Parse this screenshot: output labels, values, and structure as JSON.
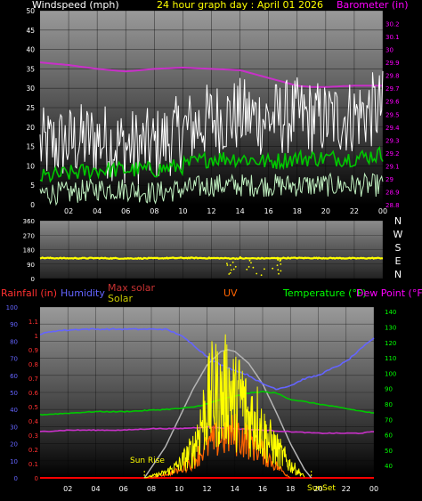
{
  "chart_data": [
    {
      "type": "line",
      "title": "24 hour graph day : April 01 2026",
      "ylabel": "Windspeed (mph)",
      "y2label": "Barometer (in)",
      "xlim": [
        0,
        24
      ],
      "ylim": [
        0,
        50
      ],
      "y2lim": [
        28.8,
        30.3
      ],
      "x_ticks": [
        "02",
        "04",
        "06",
        "08",
        "10",
        "12",
        "14",
        "16",
        "18",
        "20",
        "22",
        "00"
      ],
      "y_ticks": [
        "0",
        "5",
        "10",
        "15",
        "20",
        "25",
        "30",
        "35",
        "40",
        "45",
        "50"
      ],
      "y2_ticks": [
        "28.8",
        "28.9",
        "29",
        "29.1",
        "29.2",
        "29.3",
        "29.4",
        "29.5",
        "29.6",
        "29.7",
        "29.8",
        "29.9",
        "30",
        "30.1",
        "30.2"
      ],
      "grid": true,
      "series": [
        {
          "name": "Barometer (in)",
          "color": "#c830c8",
          "x": [
            0,
            2,
            4,
            6,
            8,
            10,
            12,
            14,
            16,
            18,
            19,
            20,
            22,
            24
          ],
          "y": [
            29.9,
            29.88,
            29.85,
            29.83,
            29.85,
            29.86,
            29.85,
            29.84,
            29.78,
            29.72,
            29.71,
            29.71,
            29.72,
            29.72
          ]
        },
        {
          "name": "gust",
          "color": "#ffffff",
          "x": [
            0,
            2,
            4,
            6,
            8,
            10,
            12,
            14,
            16,
            18,
            20,
            22,
            24
          ],
          "y": [
            15,
            16,
            17,
            15,
            15,
            19,
            22,
            23,
            22,
            23,
            22,
            23,
            25
          ]
        },
        {
          "name": "avg",
          "color": "#00c800",
          "x": [
            0,
            2,
            4,
            6,
            8,
            10,
            12,
            14,
            16,
            18,
            20,
            22,
            24
          ],
          "y": [
            7,
            8,
            9,
            9,
            9,
            10,
            12,
            12,
            11,
            12,
            12,
            12,
            13
          ]
        },
        {
          "name": "speed",
          "color": "#c0f0c0",
          "x": [
            0,
            2,
            4,
            6,
            8,
            10,
            12,
            14,
            16,
            18,
            20,
            22,
            24
          ],
          "y": [
            3,
            3,
            4,
            4,
            3,
            4,
            5,
            5,
            5,
            5,
            5,
            5,
            5
          ]
        }
      ]
    },
    {
      "type": "scatter",
      "ylabel": "Wind direction",
      "xlim": [
        0,
        24
      ],
      "ylim": [
        0,
        360
      ],
      "y_ticks": [
        "0",
        "90",
        "180",
        "270",
        "360"
      ],
      "compass": [
        "N",
        "W",
        "S",
        "E",
        "N"
      ],
      "series": [
        {
          "name": "direction",
          "color": "#ffff00",
          "x": [
            0,
            2,
            4,
            6,
            8,
            10,
            12,
            14,
            16,
            18,
            20,
            22,
            24
          ],
          "y": [
            128,
            126,
            127,
            125,
            126,
            128,
            127,
            125,
            126,
            128,
            127,
            126,
            127
          ]
        }
      ]
    },
    {
      "type": "line",
      "xlim": [
        0,
        24
      ],
      "ylim": [
        0,
        100
      ],
      "x_ticks": [
        "02",
        "04",
        "06",
        "08",
        "10",
        "12",
        "14",
        "16",
        "18",
        "20",
        "22",
        "00"
      ],
      "left_outer_label": "Rainfall (in)",
      "left_inner_label": "Humidity",
      "max_solar_label": "Max solar",
      "solar_label": "Solar",
      "uv_label": "UV",
      "temp_label": "Temperature (°F)",
      "dew_label": "Dew Point (°F)",
      "rain_ticks": [
        "0",
        "0.1",
        "0.2",
        "0.3",
        "0.4",
        "0.5",
        "0.6",
        "0.7",
        "0.8",
        "0.9",
        "1",
        "1.1"
      ],
      "hum_ticks": [
        "0",
        "10",
        "20",
        "30",
        "40",
        "50",
        "60",
        "70",
        "80",
        "90",
        "100"
      ],
      "temp_ticks": [
        "40",
        "50",
        "60",
        "70",
        "80",
        "90",
        "100",
        "110",
        "120",
        "130",
        "140"
      ],
      "sunrise_label": "Sun Rise",
      "sunset_label": "SunSet",
      "sunrise_x": 7.5,
      "sunset_x": 19.5,
      "series": [
        {
          "name": "Humidity",
          "color": "#6464ff",
          "x": [
            0,
            1,
            3,
            5,
            7,
            9,
            10,
            11,
            12,
            13,
            14,
            15,
            16,
            17,
            18,
            19,
            20,
            21,
            22,
            23,
            24
          ],
          "y": [
            84,
            86,
            87,
            87,
            87,
            87,
            84,
            78,
            71,
            66,
            63,
            60,
            55,
            52,
            54,
            58,
            60,
            64,
            68,
            75,
            82
          ]
        },
        {
          "name": "Temperature (°F)",
          "color": "#00c800",
          "x": [
            0,
            2,
            4,
            6,
            8,
            10,
            11,
            12,
            13,
            14,
            15,
            16,
            17,
            18,
            20,
            22,
            24
          ],
          "y": [
            73,
            74,
            75,
            75,
            76,
            77,
            78,
            80,
            83,
            85,
            87,
            88,
            87,
            83,
            80,
            77,
            74
          ]
        },
        {
          "name": "Dew Point (°F)",
          "color": "#c830c8",
          "x": [
            0,
            2,
            4,
            6,
            8,
            10,
            12,
            14,
            16,
            18,
            20,
            22,
            23,
            24
          ],
          "y": [
            62,
            63,
            63,
            63,
            64,
            64,
            65,
            64,
            63,
            62,
            61,
            61,
            61,
            62
          ]
        },
        {
          "name": "Max solar",
          "color": "#b4b4b4",
          "x": [
            7.5,
            9,
            10,
            11,
            12,
            13,
            13.5,
            14,
            15,
            16,
            17,
            18,
            19,
            19.5
          ],
          "y": [
            0,
            18,
            35,
            52,
            66,
            74,
            75,
            74,
            67,
            55,
            38,
            20,
            5,
            0
          ]
        },
        {
          "name": "Solar",
          "color": "#ffff00",
          "x": [
            7.5,
            9,
            10,
            11,
            11.5,
            12,
            12.5,
            13,
            13.5,
            14,
            14.5,
            15,
            15.5,
            16,
            17,
            18,
            19
          ],
          "y": [
            0,
            4,
            10,
            22,
            40,
            55,
            68,
            60,
            72,
            58,
            62,
            45,
            50,
            35,
            22,
            10,
            1
          ]
        },
        {
          "name": "UV",
          "color": "#ff6400",
          "x": [
            8,
            10,
            11,
            12,
            13,
            14,
            15,
            16,
            17,
            18
          ],
          "y": [
            0,
            5,
            12,
            22,
            28,
            30,
            26,
            18,
            8,
            0
          ]
        }
      ]
    }
  ]
}
